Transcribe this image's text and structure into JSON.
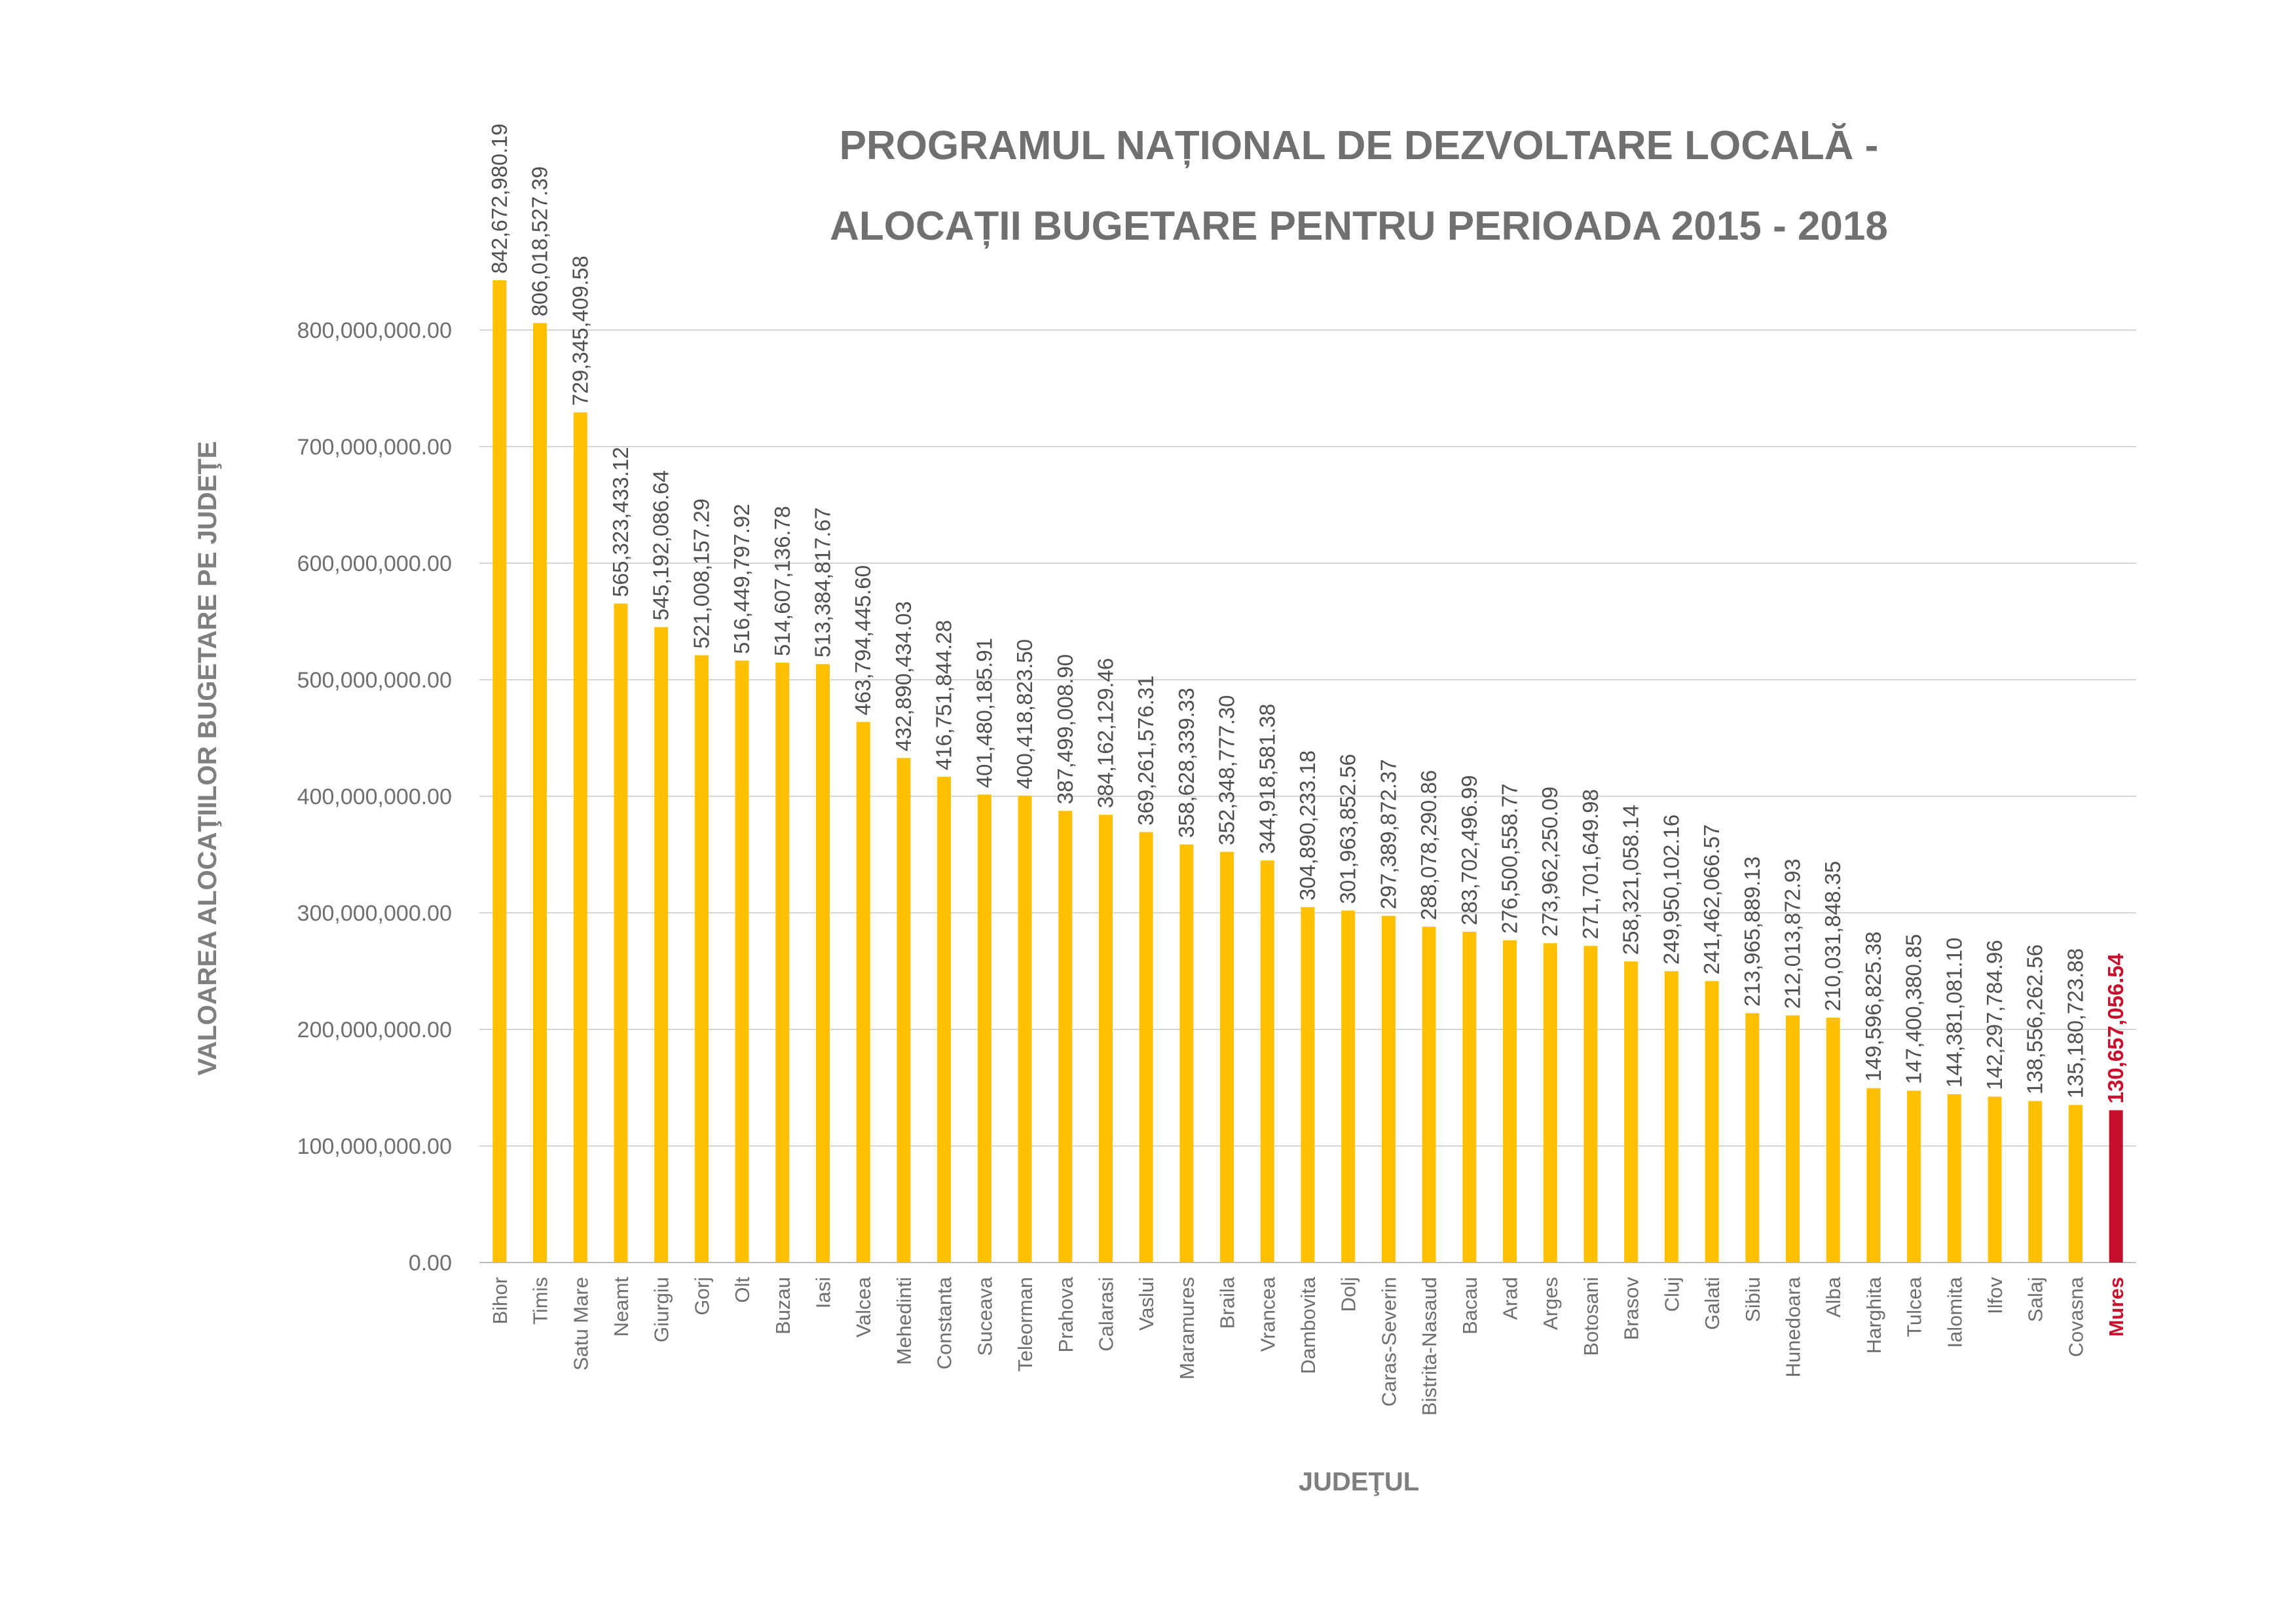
{
  "chart_data": {
    "type": "bar",
    "title_lines": [
      "PROGRAMUL NAȚIONAL DE DEZVOLTARE LOCALĂ  -",
      "ALOCAȚII BUGETARE PENTRU PERIOADA 2015 - 2018"
    ],
    "xlabel": "JUDEŢUL",
    "ylabel": "VALOAREA ALOCAŢIILOR BUGETARE PE JUDEŢE",
    "ylim": [
      0,
      800000000
    ],
    "yticks": [
      {
        "value": 0,
        "label": "0.00"
      },
      {
        "value": 100000000,
        "label": "100,000,000.00"
      },
      {
        "value": 200000000,
        "label": "200,000,000.00"
      },
      {
        "value": 300000000,
        "label": "300,000,000.00"
      },
      {
        "value": 400000000,
        "label": "400,000,000.00"
      },
      {
        "value": 500000000,
        "label": "500,000,000.00"
      },
      {
        "value": 600000000,
        "label": "600,000,000.00"
      },
      {
        "value": 700000000,
        "label": "700,000,000.00"
      },
      {
        "value": 800000000,
        "label": "800,000,000.00"
      }
    ],
    "grid": true,
    "bar_color": "#FFC000",
    "highlight_color": "#C8102E",
    "highlight_category": "Mures",
    "categories": [
      "Bihor",
      "Timis",
      "Satu Mare",
      "Neamt",
      "Giurgiu",
      "Gorj",
      "Olt",
      "Buzau",
      "Iasi",
      "Valcea",
      "Mehedinti",
      "Constanta",
      "Suceava",
      "Teleorman",
      "Prahova",
      "Calarasi",
      "Vaslui",
      "Maramures",
      "Braila",
      "Vrancea",
      "Dambovita",
      "Dolj",
      "Caras-Severin",
      "Bistrita-Nasaud",
      "Bacau",
      "Arad",
      "Arges",
      "Botosani",
      "Brasov",
      "Cluj",
      "Galati",
      "Sibiu",
      "Hunedoara",
      "Alba",
      "Harghita",
      "Tulcea",
      "Ialomita",
      "Ilfov",
      "Salaj",
      "Covasna",
      "Mures"
    ],
    "values": [
      842672980.19,
      806018527.39,
      729345409.58,
      565323433.12,
      545192086.64,
      521008157.29,
      516449797.92,
      514607136.78,
      513384817.67,
      463794445.6,
      432890434.03,
      416751844.28,
      401480185.91,
      400418823.5,
      387499008.9,
      384162129.46,
      369261576.31,
      358628339.33,
      352348777.3,
      344918581.38,
      304890233.18,
      301963852.56,
      297389872.37,
      288078290.86,
      283702496.99,
      276500558.77,
      273962250.09,
      271701649.98,
      258321058.14,
      249950102.16,
      241462066.57,
      213965889.13,
      212013872.93,
      210031848.35,
      149596825.38,
      147400380.85,
      144381081.1,
      142297784.96,
      138556262.56,
      135180723.88,
      130657056.54
    ],
    "value_labels": [
      "842,672,980.19",
      "806,018,527.39",
      "729,345,409.58",
      "565,323,433.12",
      "545,192,086.64",
      "521,008,157.29",
      "516,449,797.92",
      "514,607,136.78",
      "513,384,817.67",
      "463,794,445.60",
      "432,890,434.03",
      "416,751,844.28",
      "401,480,185.91",
      "400,418,823.50",
      "387,499,008.90",
      "384,162,129.46",
      "369,261,576.31",
      "358,628,339.33",
      "352,348,777.30",
      "344,918,581.38",
      "304,890,233.18",
      "301,963,852.56",
      "297,389,872.37",
      "288,078,290.86",
      "283,702,496.99",
      "276,500,558.77",
      "273,962,250.09",
      "271,701,649.98",
      "258,321,058.14",
      "249,950,102.16",
      "241,462,066.57",
      "213,965,889.13",
      "212,013,872.93",
      "210,031,848.35",
      "149,596,825.38",
      "147,400,380.85",
      "144,381,081.10",
      "142,297,784.96",
      "138,556,262.56",
      "135,180,723.88",
      "130,657,056.54"
    ]
  }
}
